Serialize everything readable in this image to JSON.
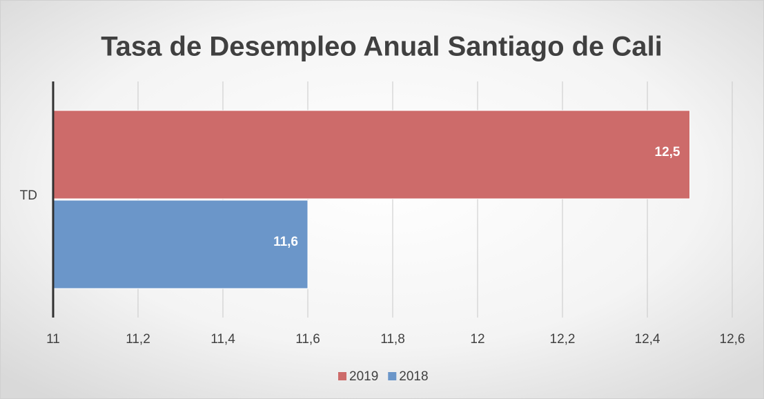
{
  "chart_data": {
    "type": "bar",
    "orientation": "horizontal",
    "title": "Tasa de Desempleo Anual Santiago de Cali",
    "categories": [
      "TD"
    ],
    "series": [
      {
        "name": "2019",
        "color": "#cd6b6a",
        "values": [
          12.5
        ],
        "value_labels": [
          "12,5"
        ]
      },
      {
        "name": "2018",
        "color": "#6b96c9",
        "values": [
          11.6
        ],
        "value_labels": [
          "11,6"
        ]
      }
    ],
    "xlim": [
      11,
      12.6
    ],
    "xticks": [
      11,
      {
        "value": 11.2,
        "label": "11,2"
      },
      {
        "value": 11.4,
        "label": "11,4"
      },
      {
        "value": 11.6,
        "label": "11,6"
      },
      {
        "value": 11.8,
        "label": "11,8"
      },
      12,
      {
        "value": 12.2,
        "label": "12,2"
      },
      {
        "value": 12.4,
        "label": "12,4"
      },
      {
        "value": 12.6,
        "label": "12,6"
      }
    ],
    "grid": true,
    "legend": "bottom"
  }
}
